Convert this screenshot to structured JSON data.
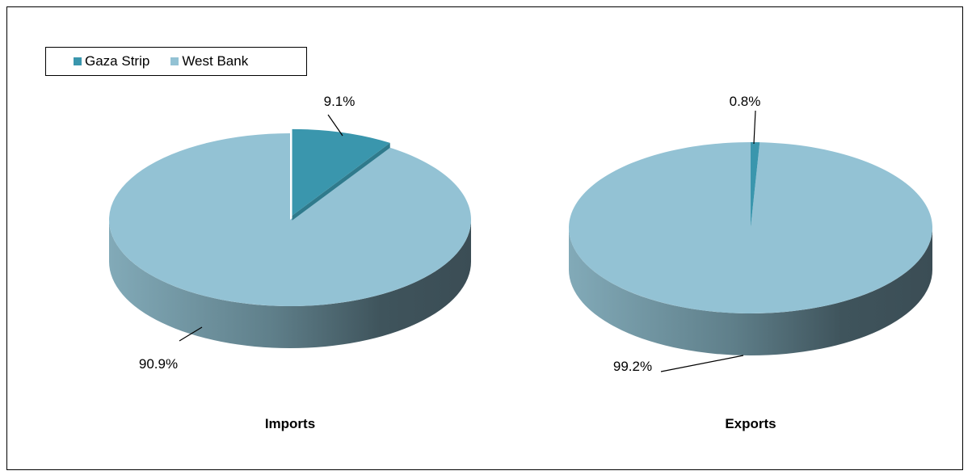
{
  "chart_data": [
    {
      "type": "pie",
      "title": "Imports",
      "categories": [
        "Gaza Strip",
        "West Bank"
      ],
      "values": [
        9.1,
        90.9
      ],
      "data_labels": [
        "9.1%",
        "90.9%"
      ],
      "exploded": "Gaza Strip",
      "style": "3d"
    },
    {
      "type": "pie",
      "title": "Exports",
      "categories": [
        "Gaza Strip",
        "West Bank"
      ],
      "values": [
        0.8,
        99.2
      ],
      "data_labels": [
        "0.8%",
        "99.2%"
      ],
      "style": "3d"
    }
  ],
  "legend": {
    "placement": "top-left",
    "items": [
      {
        "label": "Gaza Strip",
        "color": "#3a96ad"
      },
      {
        "label": "West Bank",
        "color": "#93c2d4"
      }
    ]
  },
  "colors": {
    "gaza_top": "#3a96ad",
    "gaza_side": "#2f7a8c",
    "westbank_top": "#93c2d4",
    "side_light": "#7fa6b3",
    "side_dark": "#3b4f57"
  }
}
